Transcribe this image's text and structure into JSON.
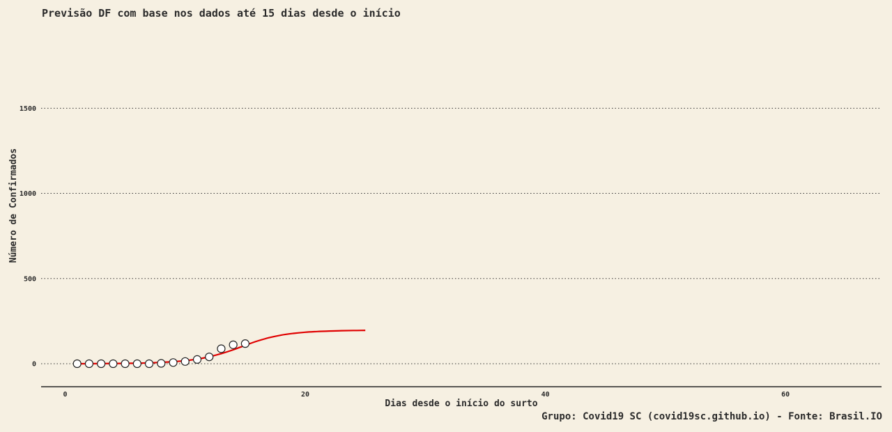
{
  "chart_data": {
    "type": "line",
    "title": "Previsão DF com base nos dados até 15 dias desde o início",
    "xlabel": "Dias desde o início do surto",
    "ylabel": "Número de Confirmados",
    "caption": "Grupo: Covid19 SC (covid19sc.github.io) - Fonte: Brasil.IO",
    "xlim": [
      -2,
      68
    ],
    "ylim": [
      -135,
      1890
    ],
    "x_ticks": [
      0,
      20,
      40,
      60
    ],
    "y_ticks": [
      0,
      500,
      1000,
      1500
    ],
    "grid": "horizontal dotted",
    "series": [
      {
        "kind": "observed",
        "x": [
          1,
          2,
          3,
          4,
          5,
          6,
          7,
          8,
          9,
          10,
          11,
          12,
          13,
          14,
          15
        ],
        "y": [
          0,
          0,
          0,
          0,
          0,
          0,
          0,
          2,
          7,
          13,
          25,
          40,
          88,
          111,
          118
        ]
      },
      {
        "kind": "fitted",
        "color": "#e00000",
        "x": [
          1,
          2,
          3,
          4,
          5,
          6,
          7,
          8,
          9,
          10,
          11,
          12,
          13,
          14,
          15,
          16,
          17,
          18,
          19,
          20,
          21,
          22,
          23,
          24,
          25
        ],
        "y": [
          0,
          0,
          1,
          1,
          2,
          3,
          5,
          8,
          12,
          18,
          27,
          41,
          59,
          82,
          108,
          133,
          153,
          168,
          178,
          185,
          189,
          192,
          194,
          195,
          196
        ]
      }
    ]
  }
}
